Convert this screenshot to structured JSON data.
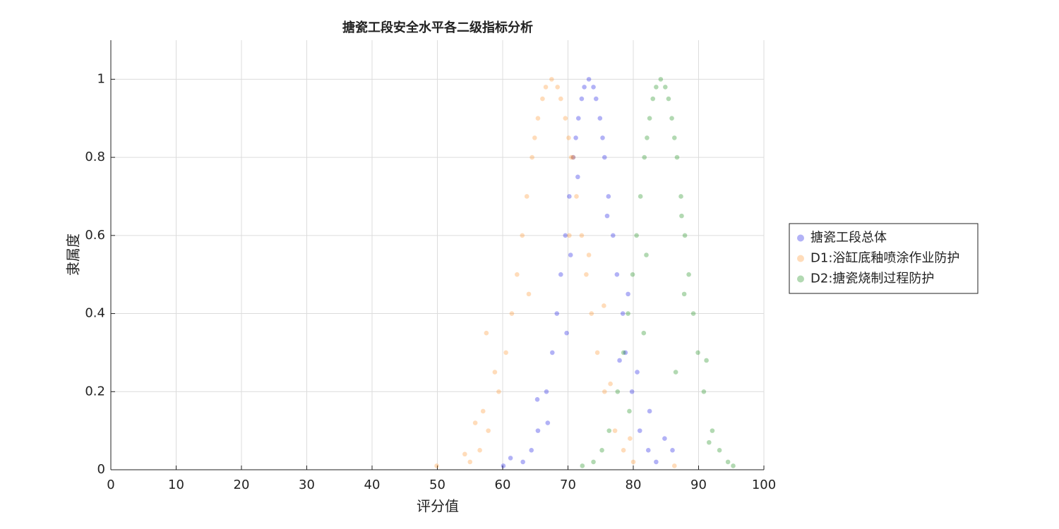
{
  "chart_data": {
    "type": "scatter",
    "title": "搪瓷工段安全水平各二级指标分析",
    "xlabel": "评分值",
    "ylabel": "隶属度",
    "xlim": [
      0,
      100
    ],
    "xticks": [
      0,
      10,
      20,
      30,
      40,
      50,
      60,
      70,
      80,
      90,
      100
    ],
    "ylim": [
      0,
      1.1
    ],
    "yticks": [
      0,
      0.2,
      0.4,
      0.6,
      0.8,
      1
    ],
    "grid": true,
    "legend_position": "right",
    "alpha": 0.3,
    "series": [
      {
        "name": "搪瓷工段总体",
        "color": "#0000e0",
        "x": [
          73.2,
          72.5,
          73.9,
          72.1,
          74.3,
          71.6,
          74.9,
          71.2,
          75.3,
          70.8,
          75.6,
          70.2,
          76.2,
          69.6,
          76.9,
          68.9,
          77.5,
          68.3,
          78.4,
          67.6,
          78.8,
          66.7,
          79.8,
          65.4,
          81.0,
          64.4,
          82.3,
          63.1,
          83.5,
          70.4,
          79.2,
          69.8,
          80.6,
          82.5,
          84.8,
          61.2,
          66.9,
          76.0,
          71.5,
          77.9,
          65.3,
          86.0,
          60.1
        ],
        "y": [
          1.0,
          0.98,
          0.98,
          0.95,
          0.95,
          0.9,
          0.9,
          0.85,
          0.85,
          0.8,
          0.8,
          0.7,
          0.7,
          0.6,
          0.6,
          0.5,
          0.5,
          0.4,
          0.4,
          0.3,
          0.3,
          0.2,
          0.2,
          0.1,
          0.1,
          0.05,
          0.05,
          0.02,
          0.02,
          0.55,
          0.45,
          0.35,
          0.25,
          0.15,
          0.08,
          0.03,
          0.12,
          0.65,
          0.75,
          0.28,
          0.18,
          0.05,
          0.01
        ]
      },
      {
        "name": "D1:浴缸底釉喷涂作业防护",
        "color": "#ff8c1a",
        "x": [
          67.5,
          66.6,
          68.4,
          66.1,
          68.9,
          65.4,
          69.6,
          64.9,
          70.1,
          64.5,
          70.5,
          63.7,
          71.3,
          63.0,
          72.1,
          62.2,
          72.8,
          61.4,
          73.6,
          60.5,
          74.5,
          59.4,
          75.6,
          57.8,
          77.2,
          56.5,
          78.5,
          55.0,
          80.0,
          49.9,
          86.3,
          57.5,
          58.8,
          57.0,
          64.0,
          73.2,
          70.2,
          70.8,
          75.5,
          76.5,
          79.5,
          54.2,
          55.8
        ],
        "y": [
          1.0,
          0.98,
          0.98,
          0.95,
          0.95,
          0.9,
          0.9,
          0.85,
          0.85,
          0.8,
          0.8,
          0.7,
          0.7,
          0.6,
          0.6,
          0.5,
          0.5,
          0.4,
          0.4,
          0.3,
          0.3,
          0.2,
          0.2,
          0.1,
          0.1,
          0.05,
          0.05,
          0.02,
          0.02,
          0.01,
          0.01,
          0.35,
          0.25,
          0.15,
          0.45,
          0.55,
          0.6,
          0.8,
          0.42,
          0.22,
          0.08,
          0.04,
          0.12
        ]
      },
      {
        "name": "D2:搪瓷烧制过程防护",
        "color": "#008000",
        "x": [
          84.2,
          83.5,
          84.9,
          83.0,
          85.4,
          82.5,
          85.9,
          82.1,
          86.3,
          81.7,
          86.7,
          81.1,
          87.3,
          80.5,
          87.9,
          79.9,
          88.5,
          79.2,
          89.2,
          78.5,
          89.9,
          77.6,
          90.8,
          76.3,
          92.1,
          75.2,
          93.2,
          73.9,
          94.5,
          72.2,
          95.3,
          91.6,
          87.8,
          81.6,
          86.5,
          79.4,
          82.0,
          87.4,
          91.2
        ],
        "y": [
          1.0,
          0.98,
          0.98,
          0.95,
          0.95,
          0.9,
          0.9,
          0.85,
          0.85,
          0.8,
          0.8,
          0.7,
          0.7,
          0.6,
          0.6,
          0.5,
          0.5,
          0.4,
          0.4,
          0.3,
          0.3,
          0.2,
          0.2,
          0.1,
          0.1,
          0.05,
          0.05,
          0.02,
          0.02,
          0.01,
          0.01,
          0.07,
          0.45,
          0.35,
          0.25,
          0.15,
          0.55,
          0.65,
          0.28
        ]
      }
    ]
  }
}
